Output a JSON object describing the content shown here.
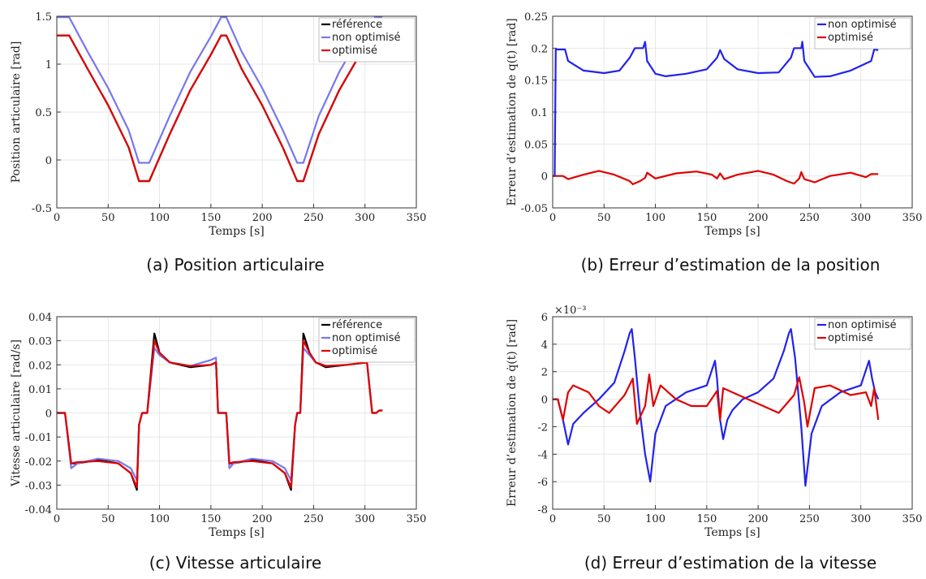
{
  "chart_data": [
    {
      "type": "line",
      "caption": "(a)  Position articulaire",
      "xlabel": "Temps [s]",
      "ylabel": "Position articulaire [rad]",
      "xlim": [
        0,
        350
      ],
      "ylim": [
        -0.5,
        1.5
      ],
      "xticks": [
        0,
        50,
        100,
        150,
        200,
        250,
        300,
        350
      ],
      "yticks": [
        -0.5,
        0,
        0.5,
        1,
        1.5
      ],
      "ytick_labels": [
        "-0.5",
        "0",
        "0.5",
        "1",
        "1.5"
      ],
      "grid": true,
      "legend_position": "top-right",
      "series": [
        {
          "name": "référence",
          "color": "#000000",
          "x": [
            0,
            12,
            30,
            50,
            70,
            80,
            90,
            110,
            130,
            150,
            160,
            165,
            180,
            200,
            220,
            234,
            240,
            255,
            275,
            295,
            310,
            317
          ],
          "y": [
            1.3,
            1.3,
            0.95,
            0.57,
            0.13,
            -0.22,
            -0.22,
            0.27,
            0.73,
            1.1,
            1.3,
            1.3,
            0.95,
            0.57,
            0.13,
            -0.22,
            -0.22,
            0.27,
            0.73,
            1.1,
            1.3,
            1.3
          ]
        },
        {
          "name": "non optimisé",
          "color": "#7777ee",
          "x": [
            0,
            12,
            30,
            50,
            70,
            80,
            90,
            110,
            130,
            150,
            160,
            165,
            180,
            200,
            220,
            234,
            240,
            255,
            275,
            295,
            310,
            317
          ],
          "y": [
            1.49,
            1.49,
            1.13,
            0.75,
            0.31,
            -0.03,
            -0.03,
            0.46,
            0.92,
            1.29,
            1.49,
            1.49,
            1.13,
            0.75,
            0.31,
            -0.03,
            -0.03,
            0.46,
            0.92,
            1.29,
            1.49,
            1.49
          ]
        },
        {
          "name": "optimisé",
          "color": "#e00000",
          "x": [
            0,
            12,
            30,
            50,
            70,
            80,
            90,
            110,
            130,
            150,
            160,
            165,
            180,
            200,
            220,
            234,
            240,
            255,
            275,
            295,
            310,
            317
          ],
          "y": [
            1.3,
            1.3,
            0.95,
            0.57,
            0.13,
            -0.22,
            -0.22,
            0.27,
            0.73,
            1.1,
            1.3,
            1.3,
            0.95,
            0.57,
            0.13,
            -0.22,
            -0.22,
            0.27,
            0.73,
            1.1,
            1.3,
            1.3
          ]
        }
      ]
    },
    {
      "type": "line",
      "caption": "(b)  Erreur d’estimation de la position",
      "xlabel": "Temps [s]",
      "ylabel": "Erreur d’estimation de q(t) [rad]",
      "xlim": [
        0,
        350
      ],
      "ylim": [
        -0.05,
        0.25
      ],
      "xticks": [
        0,
        50,
        100,
        150,
        200,
        250,
        300,
        350
      ],
      "yticks": [
        -0.05,
        0,
        0.05,
        0.1,
        0.15,
        0.2,
        0.25
      ],
      "ytick_labels": [
        "-0.05",
        "0",
        "0.05",
        "0.1",
        "0.15",
        "0.2",
        "0.25"
      ],
      "grid": true,
      "legend_position": "top-right",
      "series": [
        {
          "name": "non optimisé",
          "color": "#2222ee",
          "x": [
            0,
            2,
            3,
            12,
            15,
            30,
            50,
            65,
            75,
            80,
            88,
            90,
            92,
            100,
            110,
            130,
            150,
            160,
            163,
            167,
            180,
            200,
            220,
            232,
            235,
            242,
            243,
            245,
            255,
            270,
            290,
            310,
            313,
            317
          ],
          "y": [
            0,
            0,
            0.198,
            0.198,
            0.18,
            0.165,
            0.161,
            0.165,
            0.185,
            0.2,
            0.2,
            0.21,
            0.18,
            0.16,
            0.156,
            0.16,
            0.167,
            0.185,
            0.197,
            0.183,
            0.167,
            0.161,
            0.162,
            0.185,
            0.2,
            0.2,
            0.21,
            0.18,
            0.155,
            0.156,
            0.165,
            0.18,
            0.198,
            0.197
          ]
        },
        {
          "name": "optimisé",
          "color": "#e00000",
          "x": [
            0,
            2,
            10,
            15,
            30,
            45,
            60,
            75,
            78,
            85,
            90,
            92,
            100,
            120,
            140,
            155,
            160,
            163,
            167,
            180,
            200,
            215,
            228,
            235,
            240,
            242,
            245,
            255,
            270,
            290,
            305,
            310,
            317
          ],
          "y": [
            0,
            0,
            0,
            -0.005,
            0.002,
            0.008,
            0.002,
            -0.008,
            -0.013,
            -0.008,
            -0.003,
            0.005,
            -0.004,
            0.004,
            0.007,
            0.002,
            -0.004,
            0.004,
            -0.005,
            0.002,
            0.008,
            0.002,
            -0.008,
            -0.012,
            -0.004,
            0.006,
            -0.005,
            -0.01,
            0,
            0.005,
            -0.002,
            0.003,
            0.003
          ]
        }
      ]
    },
    {
      "type": "line",
      "caption": "(c)  Vitesse articulaire",
      "xlabel": "Temps [s]",
      "ylabel": "Vitesse articulaire [rad/s]",
      "xlim": [
        0,
        350
      ],
      "ylim": [
        -0.04,
        0.04
      ],
      "xticks": [
        0,
        50,
        100,
        150,
        200,
        250,
        300,
        350
      ],
      "yticks": [
        -0.04,
        -0.03,
        -0.02,
        -0.01,
        0,
        0.01,
        0.02,
        0.03,
        0.04
      ],
      "ytick_labels": [
        "-0.04",
        "-0.03",
        "-0.02",
        "-0.01",
        "0",
        "0.01",
        "0.02",
        "0.03",
        "0.04"
      ],
      "grid": true,
      "legend_position": "top-right",
      "series": [
        {
          "name": "référence",
          "color": "#000000",
          "x": [
            0,
            8,
            14,
            20,
            40,
            60,
            72,
            78,
            80,
            83,
            85,
            88,
            95,
            100,
            110,
            130,
            150,
            155,
            157,
            160,
            165,
            168,
            172,
            190,
            210,
            222,
            228,
            232,
            234,
            237,
            240,
            246,
            252,
            262,
            282,
            302,
            307,
            309,
            311,
            314,
            317
          ],
          "y": [
            0,
            0,
            -0.021,
            -0.021,
            -0.0195,
            -0.021,
            -0.025,
            -0.032,
            -0.005,
            0,
            0,
            0,
            0.033,
            0.025,
            0.021,
            0.019,
            0.02,
            0.021,
            0,
            0,
            0,
            -0.021,
            -0.021,
            -0.0195,
            -0.021,
            -0.025,
            -0.032,
            -0.005,
            0,
            0,
            0.033,
            0.025,
            0.021,
            0.019,
            0.02,
            0.021,
            0,
            0,
            0,
            0.001,
            0.001
          ]
        },
        {
          "name": "non optimisé",
          "color": "#7777ee",
          "x": [
            0,
            8,
            14,
            20,
            40,
            60,
            72,
            78,
            80,
            83,
            85,
            88,
            95,
            100,
            110,
            130,
            150,
            155,
            157,
            160,
            165,
            168,
            172,
            190,
            210,
            222,
            228,
            232,
            234,
            237,
            240,
            246,
            252,
            262,
            282,
            302,
            307,
            309,
            311,
            314,
            317
          ],
          "y": [
            0,
            0,
            -0.023,
            -0.021,
            -0.019,
            -0.02,
            -0.023,
            -0.028,
            -0.005,
            0,
            0,
            0,
            0.027,
            0.024,
            0.021,
            0.0195,
            0.022,
            0.023,
            0,
            0,
            0,
            -0.023,
            -0.021,
            -0.019,
            -0.02,
            -0.023,
            -0.028,
            -0.005,
            0,
            0,
            0.027,
            0.024,
            0.021,
            0.0195,
            0.02,
            0.021,
            0,
            0,
            0,
            0.001,
            0.001
          ]
        },
        {
          "name": "optimisé",
          "color": "#e00000",
          "x": [
            0,
            8,
            14,
            20,
            40,
            60,
            72,
            78,
            80,
            83,
            85,
            88,
            95,
            100,
            110,
            130,
            150,
            155,
            157,
            160,
            165,
            168,
            172,
            190,
            210,
            222,
            228,
            232,
            234,
            237,
            240,
            246,
            252,
            262,
            282,
            302,
            307,
            309,
            311,
            314,
            317
          ],
          "y": [
            0,
            0,
            -0.021,
            -0.0205,
            -0.02,
            -0.021,
            -0.025,
            -0.031,
            -0.005,
            0,
            0,
            0,
            0.03,
            0.025,
            0.021,
            0.0195,
            0.02,
            0.021,
            0,
            0,
            0,
            -0.021,
            -0.0205,
            -0.02,
            -0.021,
            -0.025,
            -0.031,
            -0.005,
            0,
            0,
            0.03,
            0.025,
            0.021,
            0.0195,
            0.02,
            0.021,
            0,
            0,
            0,
            0.001,
            0.001
          ]
        }
      ]
    },
    {
      "type": "line",
      "caption": "(d)  Erreur d’estimation de la vitesse",
      "xlabel": "Temps [s]",
      "ylabel": "Erreur d’estimation de q̇(t) [rad]",
      "y_multiplier": "×10⁻³",
      "xlim": [
        0,
        350
      ],
      "ylim": [
        -8,
        6
      ],
      "xticks": [
        0,
        50,
        100,
        150,
        200,
        250,
        300,
        350
      ],
      "yticks": [
        -8,
        -6,
        -4,
        -2,
        0,
        2,
        4,
        6
      ],
      "ytick_labels": [
        "-8",
        "-6",
        "-4",
        "-2",
        "0",
        "2",
        "4",
        "6"
      ],
      "grid": true,
      "legend_position": "top-right",
      "series": [
        {
          "name": "non optimisé",
          "color": "#2222ee",
          "x": [
            0,
            5,
            10,
            15,
            20,
            30,
            45,
            60,
            70,
            75,
            77,
            80,
            85,
            90,
            95,
            100,
            110,
            130,
            150,
            158,
            160,
            163,
            166,
            170,
            175,
            185,
            200,
            215,
            225,
            230,
            232,
            236,
            242,
            246,
            252,
            262,
            280,
            300,
            308,
            311,
            314,
            317
          ],
          "y": [
            0,
            0,
            -1.5,
            -3.3,
            -1.8,
            -1,
            0,
            1.2,
            3.5,
            4.8,
            5.1,
            3,
            -1,
            -4,
            -6,
            -2.5,
            -0.5,
            0.5,
            1,
            2.8,
            1.5,
            -1.5,
            -2.9,
            -1.5,
            -0.8,
            0,
            0.5,
            1.5,
            3.5,
            4.8,
            5.1,
            3,
            -2,
            -6.3,
            -2.5,
            -0.5,
            0.5,
            1,
            2.8,
            1.5,
            0.5,
            0
          ]
        },
        {
          "name": "optimisé",
          "color": "#e00000",
          "x": [
            0,
            5,
            10,
            15,
            20,
            35,
            45,
            55,
            70,
            78,
            82,
            90,
            94,
            98,
            105,
            120,
            135,
            150,
            160,
            163,
            166,
            175,
            190,
            205,
            220,
            235,
            240,
            245,
            248,
            255,
            270,
            290,
            305,
            310,
            313,
            317
          ],
          "y": [
            0,
            0,
            -1.5,
            0.5,
            1,
            0.5,
            -0.5,
            -1,
            0.3,
            1.5,
            -1.8,
            -0.5,
            1.8,
            -0.5,
            1,
            0,
            -0.5,
            -0.5,
            0.6,
            -1.5,
            0.8,
            0.5,
            0,
            -0.5,
            -1,
            0.3,
            1.6,
            -0.3,
            -2,
            0.8,
            1,
            0.3,
            0.5,
            -0.5,
            0.8,
            -1.5
          ]
        }
      ]
    }
  ]
}
